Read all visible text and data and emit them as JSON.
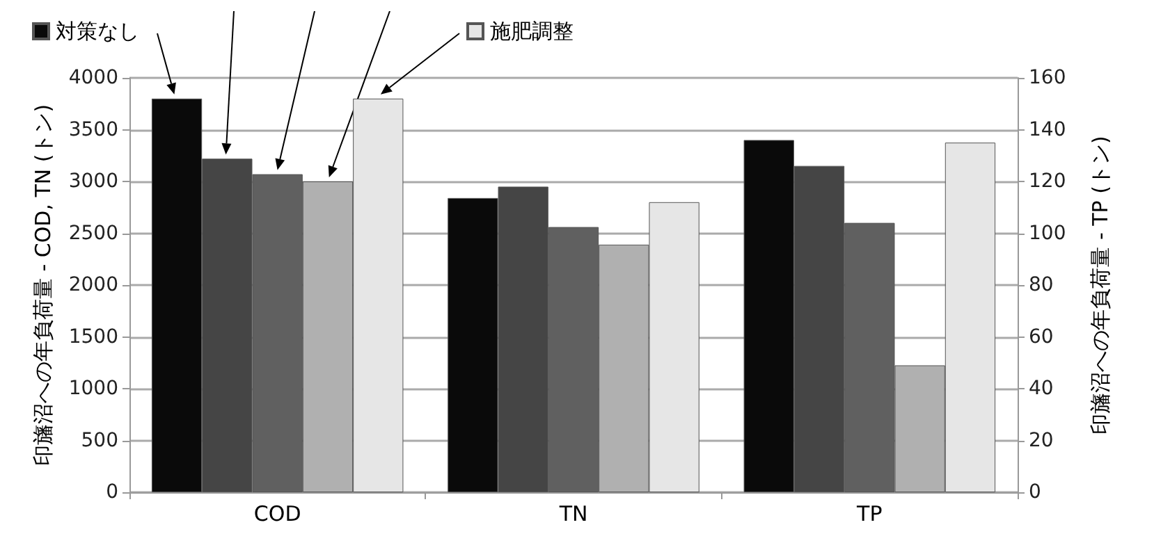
{
  "chart_data": {
    "type": "bar",
    "categories": [
      "COD",
      "TN",
      "TP"
    ],
    "ylabel": "印旛沼への年負荷量 - COD, TN (トン)",
    "y2label": "印旛沼への年負荷量 - TP (トン)",
    "ylim": [
      0,
      4000
    ],
    "yticks": [
      0,
      500,
      1000,
      1500,
      2000,
      2500,
      3000,
      3500,
      4000
    ],
    "y2lim": [
      0,
      160
    ],
    "y2ticks": [
      0,
      20,
      40,
      60,
      80,
      100,
      120,
      140,
      160
    ],
    "grid": "y",
    "legend": "top left",
    "series": [
      {
        "name": "対策なし",
        "color": "#0a0a0a",
        "values": [
          3800,
          2840,
          null
        ]
      },
      {
        "color": "#454545",
        "values": [
          3220,
          2950,
          null
        ]
      },
      {
        "color": "#606060",
        "values": [
          3070,
          2560,
          null
        ]
      },
      {
        "color": "#b0b0b0",
        "values": [
          3000,
          2390,
          null
        ]
      },
      {
        "name": "施肥調整",
        "color": "#e6e6e6",
        "values": [
          3800,
          2800,
          null
        ]
      },
      {
        "color": "#0a0a0a",
        "axis": "y2",
        "values": [
          null,
          null,
          136
        ]
      },
      {
        "color": "#454545",
        "axis": "y2",
        "values": [
          null,
          null,
          126
        ]
      },
      {
        "color": "#606060",
        "axis": "y2",
        "values": [
          null,
          null,
          104
        ]
      },
      {
        "color": "#b0b0b0",
        "axis": "y2",
        "values": [
          null,
          null,
          49
        ]
      },
      {
        "color": "#e6e6e6",
        "axis": "y2",
        "values": [
          null,
          null,
          135
        ]
      }
    ]
  }
}
